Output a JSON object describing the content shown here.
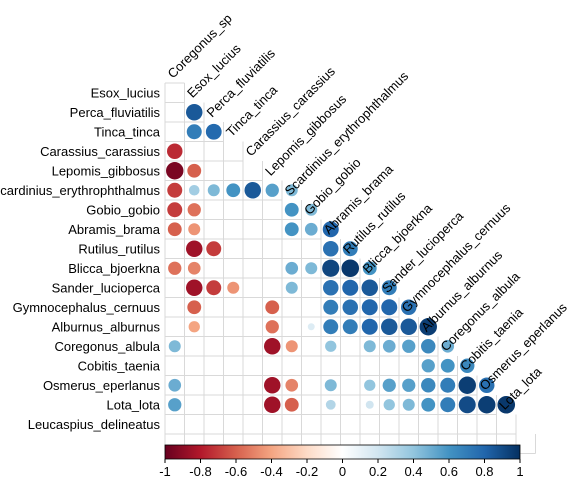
{
  "chart_data": {
    "type": "heatmap",
    "variant": "correlation matrix, lower triangle, circle glyphs",
    "variables": [
      "Coregonus_sp",
      "Esox_lucius",
      "Perca_fluviatilis",
      "Tinca_tinca",
      "Carassius_carassius",
      "Lepomis_gibbosus",
      "Scardinius_erythrophthalmus",
      "Gobio_gobio",
      "Abramis_brama",
      "Rutilus_rutilus",
      "Blicca_bjoerkna",
      "Sander_lucioperca",
      "Gymnocephalus_cernuus",
      "Alburnus_alburnus",
      "Coregonus_albula",
      "Cobitis_taenia",
      "Osmerus_eperlanus",
      "Lota_lota",
      "Leucaspius_delineatus"
    ],
    "row_labels": [
      "Esox_lucius",
      "Perca_fluviatilis",
      "Tinca_tinca",
      "Carassius_carassius",
      "Lepomis_gibbosus",
      "Scardinius_erythrophthalmus",
      "Gobio_gobio",
      "Abramis_brama",
      "Rutilus_rutilus",
      "Blicca_bjoerkna",
      "Sander_lucioperca",
      "Gymnocephalus_cernuus",
      "Alburnus_alburnus",
      "Coregonus_albula",
      "Cobitis_taenia",
      "Osmerus_eperlanus",
      "Lota_lota",
      "Leucaspius_delineatus"
    ],
    "column_labels": [
      "Coregonus_sp",
      "Esox_lucius",
      "Perca_fluviatilis",
      "Tinca_tinca",
      "Carassius_carassius",
      "Lepomis_gibbosus",
      "Scardinius_erythrophthalmus",
      "Gobio_gobio",
      "Abramis_brama",
      "Rutilus_rutilus",
      "Blicca_bjoerkna",
      "Sander_lucioperca",
      "Gymnocephalus_cernuus",
      "Alburnus_alburnus",
      "Coregonus_albula",
      "Cobitis_taenia",
      "Osmerus_eperlanus",
      "Lota_lota"
    ],
    "correlations": [
      {
        "row": "Perca_fluviatilis",
        "col": "Esox_lucius",
        "r": 0.85
      },
      {
        "row": "Tinca_tinca",
        "col": "Esox_lucius",
        "r": 0.7
      },
      {
        "row": "Tinca_tinca",
        "col": "Perca_fluviatilis",
        "r": 0.78
      },
      {
        "row": "Carassius_carassius",
        "col": "Coregonus_sp",
        "r": -0.75
      },
      {
        "row": "Lepomis_gibbosus",
        "col": "Coregonus_sp",
        "r": -0.95
      },
      {
        "row": "Lepomis_gibbosus",
        "col": "Esox_lucius",
        "r": -0.6
      },
      {
        "row": "Scardinius_erythrophthalmus",
        "col": "Coregonus_sp",
        "r": -0.7
      },
      {
        "row": "Scardinius_erythrophthalmus",
        "col": "Esox_lucius",
        "r": 0.35
      },
      {
        "row": "Scardinius_erythrophthalmus",
        "col": "Perca_fluviatilis",
        "r": 0.45
      },
      {
        "row": "Scardinius_erythrophthalmus",
        "col": "Tinca_tinca",
        "r": 0.6
      },
      {
        "row": "Scardinius_erythrophthalmus",
        "col": "Carassius_carassius",
        "r": 0.85
      },
      {
        "row": "Scardinius_erythrophthalmus",
        "col": "Lepomis_gibbosus",
        "r": 0.55
      },
      {
        "row": "Scardinius_erythrophthalmus",
        "col": "Scardinius_erythrophthalmus",
        "r": 0.45
      },
      {
        "row": "Gobio_gobio",
        "col": "Coregonus_sp",
        "r": -0.7
      },
      {
        "row": "Gobio_gobio",
        "col": "Esox_lucius",
        "r": -0.55
      },
      {
        "row": "Gobio_gobio",
        "col": "Scardinius_erythrophthalmus",
        "r": 0.6
      },
      {
        "row": "Gobio_gobio",
        "col": "Gobio_gobio",
        "r": 0.45
      },
      {
        "row": "Abramis_brama",
        "col": "Coregonus_sp",
        "r": -0.6
      },
      {
        "row": "Abramis_brama",
        "col": "Esox_lucius",
        "r": -0.45
      },
      {
        "row": "Abramis_brama",
        "col": "Scardinius_erythrophthalmus",
        "r": 0.6
      },
      {
        "row": "Abramis_brama",
        "col": "Gobio_gobio",
        "r": 0.5
      },
      {
        "row": "Abramis_brama",
        "col": "Abramis_brama",
        "r": 0.8
      },
      {
        "row": "Rutilus_rutilus",
        "col": "Esox_lucius",
        "r": -0.85
      },
      {
        "row": "Rutilus_rutilus",
        "col": "Perca_fluviatilis",
        "r": -0.7
      },
      {
        "row": "Rutilus_rutilus",
        "col": "Abramis_brama",
        "r": 0.75
      },
      {
        "row": "Rutilus_rutilus",
        "col": "Rutilus_rutilus",
        "r": 0.7
      },
      {
        "row": "Blicca_bjoerkna",
        "col": "Coregonus_sp",
        "r": -0.55
      },
      {
        "row": "Blicca_bjoerkna",
        "col": "Esox_lucius",
        "r": -0.5
      },
      {
        "row": "Blicca_bjoerkna",
        "col": "Scardinius_erythrophthalmus",
        "r": 0.5
      },
      {
        "row": "Blicca_bjoerkna",
        "col": "Gobio_gobio",
        "r": 0.45
      },
      {
        "row": "Blicca_bjoerkna",
        "col": "Abramis_brama",
        "r": 0.92
      },
      {
        "row": "Blicca_bjoerkna",
        "col": "Rutilus_rutilus",
        "r": 0.97
      },
      {
        "row": "Blicca_bjoerkna",
        "col": "Blicca_bjoerkna",
        "r": 0.6
      },
      {
        "row": "Sander_lucioperca",
        "col": "Esox_lucius",
        "r": -0.85
      },
      {
        "row": "Sander_lucioperca",
        "col": "Perca_fluviatilis",
        "r": -0.7
      },
      {
        "row": "Sander_lucioperca",
        "col": "Tinca_tinca",
        "r": -0.45
      },
      {
        "row": "Sander_lucioperca",
        "col": "Scardinius_erythrophthalmus",
        "r": 0.45
      },
      {
        "row": "Sander_lucioperca",
        "col": "Abramis_brama",
        "r": 0.75
      },
      {
        "row": "Sander_lucioperca",
        "col": "Rutilus_rutilus",
        "r": 0.8
      },
      {
        "row": "Sander_lucioperca",
        "col": "Blicca_bjoerkna",
        "r": 0.85
      },
      {
        "row": "Sander_lucioperca",
        "col": "Sander_lucioperca",
        "r": 0.7
      },
      {
        "row": "Gymnocephalus_cernuus",
        "col": "Esox_lucius",
        "r": -0.6
      },
      {
        "row": "Gymnocephalus_cernuus",
        "col": "Lepomis_gibbosus",
        "r": -0.6
      },
      {
        "row": "Gymnocephalus_cernuus",
        "col": "Abramis_brama",
        "r": 0.7
      },
      {
        "row": "Gymnocephalus_cernuus",
        "col": "Rutilus_rutilus",
        "r": 0.75
      },
      {
        "row": "Gymnocephalus_cernuus",
        "col": "Blicca_bjoerkna",
        "r": 0.8
      },
      {
        "row": "Gymnocephalus_cernuus",
        "col": "Sander_lucioperca",
        "r": 0.8
      },
      {
        "row": "Gymnocephalus_cernuus",
        "col": "Gymnocephalus_cernuus",
        "r": 0.75
      },
      {
        "row": "Alburnus_alburnus",
        "col": "Esox_lucius",
        "r": -0.4
      },
      {
        "row": "Alburnus_alburnus",
        "col": "Lepomis_gibbosus",
        "r": -0.55
      },
      {
        "row": "Alburnus_alburnus",
        "col": "Gobio_gobio",
        "r": 0.15
      },
      {
        "row": "Alburnus_alburnus",
        "col": "Abramis_brama",
        "r": 0.7
      },
      {
        "row": "Alburnus_alburnus",
        "col": "Rutilus_rutilus",
        "r": 0.7
      },
      {
        "row": "Alburnus_alburnus",
        "col": "Blicca_bjoerkna",
        "r": 0.8
      },
      {
        "row": "Alburnus_alburnus",
        "col": "Sander_lucioperca",
        "r": 0.85
      },
      {
        "row": "Alburnus_alburnus",
        "col": "Gymnocephalus_cernuus",
        "r": 0.85
      },
      {
        "row": "Alburnus_alburnus",
        "col": "Alburnus_alburnus",
        "r": 0.95
      },
      {
        "row": "Coregonus_albula",
        "col": "Coregonus_sp",
        "r": 0.45
      },
      {
        "row": "Coregonus_albula",
        "col": "Lepomis_gibbosus",
        "r": -0.85
      },
      {
        "row": "Coregonus_albula",
        "col": "Scardinius_erythrophthalmus",
        "r": -0.45
      },
      {
        "row": "Coregonus_albula",
        "col": "Abramis_brama",
        "r": 0.4
      },
      {
        "row": "Coregonus_albula",
        "col": "Blicca_bjoerkna",
        "r": 0.45
      },
      {
        "row": "Coregonus_albula",
        "col": "Sander_lucioperca",
        "r": 0.5
      },
      {
        "row": "Coregonus_albula",
        "col": "Gymnocephalus_cernuus",
        "r": 0.55
      },
      {
        "row": "Coregonus_albula",
        "col": "Alburnus_alburnus",
        "r": 0.65
      },
      {
        "row": "Coregonus_albula",
        "col": "Coregonus_albula",
        "r": 0.5
      },
      {
        "row": "Cobitis_taenia",
        "col": "Alburnus_alburnus",
        "r": 0.55
      },
      {
        "row": "Cobitis_taenia",
        "col": "Coregonus_albula",
        "r": 0.6
      },
      {
        "row": "Cobitis_taenia",
        "col": "Cobitis_taenia",
        "r": 0.65
      },
      {
        "row": "Osmerus_eperlanus",
        "col": "Coregonus_sp",
        "r": 0.5
      },
      {
        "row": "Osmerus_eperlanus",
        "col": "Lepomis_gibbosus",
        "r": -0.85
      },
      {
        "row": "Osmerus_eperlanus",
        "col": "Scardinius_erythrophthalmus",
        "r": -0.5
      },
      {
        "row": "Osmerus_eperlanus",
        "col": "Abramis_brama",
        "r": 0.45
      },
      {
        "row": "Osmerus_eperlanus",
        "col": "Blicca_bjoerkna",
        "r": 0.4
      },
      {
        "row": "Osmerus_eperlanus",
        "col": "Sander_lucioperca",
        "r": 0.55
      },
      {
        "row": "Osmerus_eperlanus",
        "col": "Gymnocephalus_cernuus",
        "r": 0.55
      },
      {
        "row": "Osmerus_eperlanus",
        "col": "Alburnus_alburnus",
        "r": 0.65
      },
      {
        "row": "Osmerus_eperlanus",
        "col": "Coregonus_albula",
        "r": 0.7
      },
      {
        "row": "Osmerus_eperlanus",
        "col": "Cobitis_taenia",
        "r": 0.95
      },
      {
        "row": "Osmerus_eperlanus",
        "col": "Osmerus_eperlanus",
        "r": 0.75
      },
      {
        "row": "Lota_lota",
        "col": "Coregonus_sp",
        "r": 0.55
      },
      {
        "row": "Lota_lota",
        "col": "Lepomis_gibbosus",
        "r": -0.85
      },
      {
        "row": "Lota_lota",
        "col": "Scardinius_erythrophthalmus",
        "r": -0.6
      },
      {
        "row": "Lota_lota",
        "col": "Abramis_brama",
        "r": 0.3
      },
      {
        "row": "Lota_lota",
        "col": "Blicca_bjoerkna",
        "r": 0.2
      },
      {
        "row": "Lota_lota",
        "col": "Sander_lucioperca",
        "r": 0.4
      },
      {
        "row": "Lota_lota",
        "col": "Gymnocephalus_cernuus",
        "r": 0.45
      },
      {
        "row": "Lota_lota",
        "col": "Alburnus_alburnus",
        "r": 0.6
      },
      {
        "row": "Lota_lota",
        "col": "Coregonus_albula",
        "r": 0.7
      },
      {
        "row": "Lota_lota",
        "col": "Cobitis_taenia",
        "r": 0.9
      },
      {
        "row": "Lota_lota",
        "col": "Osmerus_eperlanus",
        "r": 0.95
      },
      {
        "row": "Lota_lota",
        "col": "Lota_lota",
        "r": 0.97
      }
    ],
    "colorbar": {
      "range": [
        -1,
        1
      ],
      "ticks": [
        "-1",
        "-0.8",
        "-0.6",
        "-0.4",
        "-0.2",
        "0",
        "0.2",
        "0.4",
        "0.6",
        "0.8",
        "1"
      ],
      "colors": [
        "#67001f",
        "#b2182b",
        "#d6604d",
        "#f4a582",
        "#fddbc7",
        "#ffffff",
        "#d1e5f0",
        "#92c5de",
        "#4393c3",
        "#2166ac",
        "#053061"
      ],
      "placement": "bottom"
    },
    "grid": true
  }
}
